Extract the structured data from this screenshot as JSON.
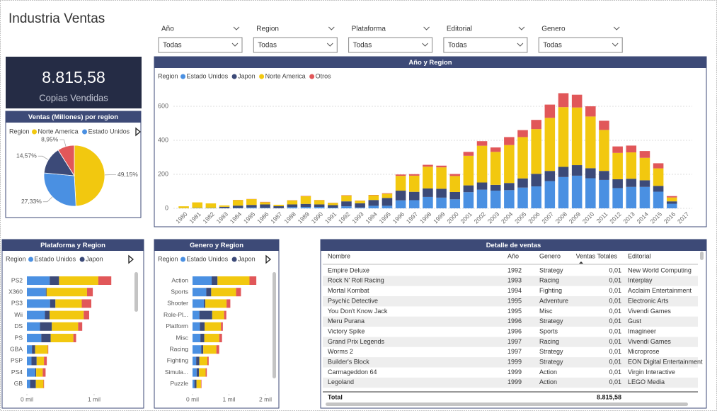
{
  "title": "Industria Ventas",
  "slicers": [
    {
      "label": "Año",
      "value": "Todas"
    },
    {
      "label": "Region",
      "value": "Todas"
    },
    {
      "label": "Plataforma",
      "value": "Todas"
    },
    {
      "label": "Editorial",
      "value": "Todas"
    },
    {
      "label": "Genero",
      "value": "Todas"
    }
  ],
  "kpi": {
    "value": "8.815,58",
    "label": "Copias Vendidas"
  },
  "chart_data": [
    {
      "type": "pie",
      "title": "Ventas (Millones) por region",
      "legend_title": "Region",
      "categories": [
        "Norte America",
        "Estado Unidos",
        null,
        null
      ],
      "values": [
        49.15,
        27.33,
        14.57,
        8.95
      ],
      "value_labels": [
        "49,15%",
        "27,33%",
        "14,57%",
        "8,95%"
      ],
      "colors": [
        "#f2c80f",
        "#4a90e2",
        "#3c4a78",
        "#e15759"
      ]
    },
    {
      "type": "stacked-bar",
      "title": "Año y Region",
      "legend_title": "Region",
      "categories": [
        "1980",
        "1981",
        "1982",
        "1983",
        "1984",
        "1985",
        "1986",
        "1987",
        "1988",
        "1989",
        "1990",
        "1991",
        "1992",
        "1993",
        "1994",
        "1995",
        "1996",
        "1997",
        "1998",
        "1999",
        "2000",
        "2001",
        "2002",
        "2003",
        "2004",
        "2005",
        "2006",
        "2007",
        "2008",
        "2009",
        "2010",
        "2011",
        "2012",
        "2013",
        "2014",
        "2015",
        "2016",
        "2017"
      ],
      "series": [
        {
          "name": "Estado Unidos",
          "color": "#4a90e2",
          "values": [
            1,
            2,
            2,
            1,
            2,
            5,
            3,
            1,
            7,
            8,
            8,
            4,
            12,
            5,
            15,
            15,
            47,
            48,
            67,
            63,
            53,
            95,
            110,
            104,
            107,
            122,
            129,
            160,
            184,
            192,
            177,
            167,
            119,
            126,
            126,
            98,
            27,
            0
          ]
        },
        {
          "name": "Japon",
          "color": "#3c4a78",
          "values": [
            0,
            0,
            0,
            8,
            14,
            15,
            20,
            12,
            16,
            18,
            15,
            15,
            29,
            25,
            34,
            46,
            57,
            49,
            50,
            52,
            43,
            40,
            42,
            34,
            42,
            54,
            74,
            60,
            60,
            62,
            59,
            53,
            52,
            48,
            39,
            34,
            14,
            0
          ]
        },
        {
          "name": "Norte America",
          "color": "#f2c80f",
          "values": [
            11,
            33,
            27,
            8,
            33,
            34,
            13,
            8,
            24,
            45,
            25,
            13,
            34,
            15,
            28,
            25,
            87,
            95,
            128,
            126,
            94,
            174,
            216,
            194,
            223,
            243,
            263,
            312,
            351,
            339,
            304,
            241,
            155,
            155,
            132,
            103,
            23,
            0
          ]
        },
        {
          "name": "Otros",
          "color": "#e15759",
          "values": [
            0,
            0,
            0,
            0,
            1,
            1,
            2,
            0,
            1,
            2,
            1,
            1,
            2,
            1,
            2,
            3,
            8,
            9,
            11,
            10,
            12,
            23,
            27,
            26,
            47,
            41,
            54,
            78,
            82,
            75,
            60,
            54,
            38,
            40,
            40,
            30,
            8,
            0
          ]
        }
      ],
      "ylim": [
        0,
        700
      ],
      "yticks": [
        0,
        200,
        400,
        600
      ],
      "grid": true
    },
    {
      "type": "stacked-barh",
      "title": "Plataforma y Region",
      "legend_title": "Region",
      "categories": [
        "PS2",
        "X360",
        "PS3",
        "Wii",
        "DS",
        "PS",
        "GBA",
        "PSP",
        "PS4",
        "GB"
      ],
      "series": [
        {
          "name": "Estado Unidos",
          "color": "#4a90e2",
          "values": [
            339,
            281,
            344,
            268,
            195,
            214,
            75,
            68,
            124,
            48
          ]
        },
        {
          "name": "Japon",
          "color": "#3c4a78",
          "values": [
            139,
            12,
            80,
            69,
            176,
            140,
            47,
            77,
            14,
            85
          ]
        },
        {
          "color": "#f2c80f",
          "values": [
            584,
            601,
            392,
            508,
            391,
            337,
            188,
            109,
            97,
            114
          ]
        },
        {
          "color": "#e15759",
          "values": [
            193,
            86,
            142,
            81,
            61,
            41,
            8,
            42,
            43,
            8
          ]
        }
      ],
      "xlim": [
        0,
        1300
      ],
      "xticks": [
        {
          "value": 0,
          "label": "0 mil"
        },
        {
          "value": 1000,
          "label": "1 mil"
        }
      ]
    },
    {
      "type": "stacked-barh",
      "title": "Genero y Region",
      "legend_title": "Region",
      "categories": [
        "Action",
        "Sports",
        "Shooter",
        "Role-Pl...",
        "Platform",
        "Misc",
        "Racing",
        "Fighting",
        "Simula...",
        "Puzzle"
      ],
      "series": [
        {
          "name": "Estado Unidos",
          "color": "#4a90e2",
          "values": [
            525,
            377,
            313,
            188,
            202,
            216,
            238,
            100,
            113,
            51
          ]
        },
        {
          "name": "Japon",
          "color": "#3c4a78",
          "values": [
            160,
            135,
            38,
            352,
            131,
            108,
            57,
            87,
            64,
            57
          ]
        },
        {
          "color": "#f2c80f",
          "values": [
            878,
            683,
            583,
            327,
            447,
            410,
            359,
            220,
            183,
            124
          ]
        },
        {
          "color": "#e15759",
          "values": [
            187,
            134,
            103,
            60,
            52,
            75,
            77,
            36,
            32,
            13
          ]
        }
      ],
      "xlim": [
        0,
        2000
      ],
      "xticks": [
        {
          "value": 0,
          "label": "0 mil"
        },
        {
          "value": 1000,
          "label": "1 mil"
        },
        {
          "value": 2000,
          "label": "2 mil"
        }
      ]
    }
  ],
  "table": {
    "title": "Detalle de ventas",
    "columns": [
      "Nombre",
      "Año",
      "Genero",
      "Ventas Totales",
      "Editorial"
    ],
    "rows": [
      [
        "Empire Deluxe",
        "1992",
        "Strategy",
        "0,01",
        "New World Computing"
      ],
      [
        "Rock N' Roll Racing",
        "1993",
        "Racing",
        "0,01",
        "Interplay"
      ],
      [
        "Mortal Kombat",
        "1994",
        "Fighting",
        "0,01",
        "Acclaim Entertainment"
      ],
      [
        "Psychic Detective",
        "1995",
        "Adventure",
        "0,01",
        "Electronic Arts"
      ],
      [
        "You Don't Know Jack",
        "1995",
        "Misc",
        "0,01",
        "Vivendi Games"
      ],
      [
        "Meru Purana",
        "1996",
        "Strategy",
        "0,01",
        "Gust"
      ],
      [
        "Victory Spike",
        "1996",
        "Sports",
        "0,01",
        "Imagineer"
      ],
      [
        "Grand Prix Legends",
        "1997",
        "Racing",
        "0,01",
        "Vivendi Games"
      ],
      [
        "Worms 2",
        "1997",
        "Strategy",
        "0,01",
        "Microprose"
      ],
      [
        "Builder's Block",
        "1999",
        "Strategy",
        "0,01",
        "EON Digital Entertainment"
      ],
      [
        "Carmageddon 64",
        "1999",
        "Action",
        "0,01",
        "Virgin Interactive"
      ],
      [
        "Legoland",
        "1999",
        "Action",
        "0,01",
        "LEGO Media"
      ]
    ],
    "total": [
      "Total",
      "8.815,58"
    ]
  }
}
